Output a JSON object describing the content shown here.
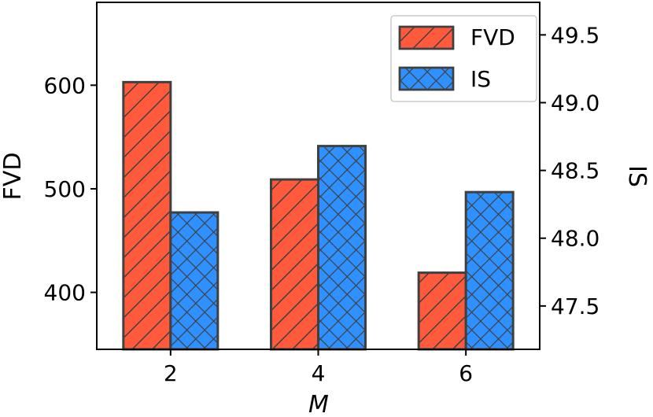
{
  "chart_data": {
    "type": "bar",
    "title": "",
    "xlabel": "M",
    "categories": [
      "2",
      "4",
      "6"
    ],
    "series": [
      {
        "name": "FVD",
        "axis": "left",
        "values": [
          603,
          509,
          419
        ],
        "color": "#ff5a3c",
        "hatch": "diagonal"
      },
      {
        "name": "IS",
        "axis": "right",
        "values": [
          48.19,
          48.68,
          48.34
        ],
        "color": "#2f90ff",
        "hatch": "crosshatch"
      }
    ],
    "y_left": {
      "label": "FVD",
      "lim": [
        345,
        680
      ],
      "ticks": [
        400,
        500,
        600
      ],
      "tick_labels": [
        "400",
        "500",
        "600"
      ]
    },
    "y_right": {
      "label": "IS",
      "lim": [
        47.18,
        49.74
      ],
      "ticks": [
        47.5,
        48.0,
        48.5,
        49.0,
        49.5
      ],
      "tick_labels": [
        "47.5",
        "48.0",
        "48.5",
        "49.0",
        "49.5"
      ]
    },
    "legend": {
      "position": "top-right",
      "entries": [
        "FVD",
        "IS"
      ]
    },
    "edge_color": "#404040",
    "grid": false
  }
}
